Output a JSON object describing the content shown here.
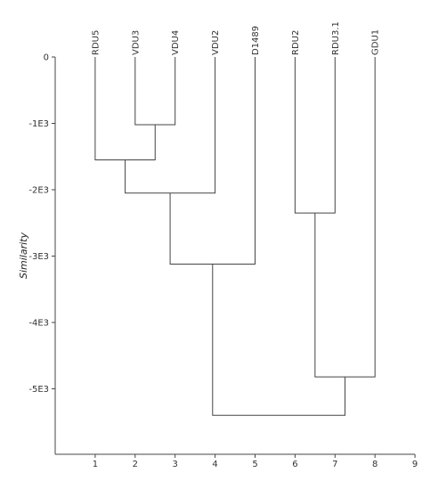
{
  "chart_data": {
    "type": "dendrogram",
    "ylabel": "Similarity",
    "xlabel": "",
    "x_ticks": [
      "1",
      "2",
      "3",
      "4",
      "5",
      "6",
      "7",
      "8",
      "9"
    ],
    "y_ticks": [
      {
        "value": 0,
        "label": "0"
      },
      {
        "value": 1,
        "label": "-1E3"
      },
      {
        "value": 2,
        "label": "-2E3"
      },
      {
        "value": 3,
        "label": "-3E3"
      },
      {
        "value": 4,
        "label": "-4E3"
      },
      {
        "value": 5,
        "label": "-5E3"
      }
    ],
    "xlim": [
      0,
      9
    ],
    "ylim": [
      0,
      6.05
    ],
    "leaves": [
      {
        "label": "RDU5",
        "x": 1
      },
      {
        "label": "VDU3",
        "x": 2
      },
      {
        "label": "VDU4",
        "x": 3
      },
      {
        "label": "VDU2",
        "x": 4
      },
      {
        "label": "D1489",
        "x": 5
      },
      {
        "label": "RDU2",
        "x": 6
      },
      {
        "label": "RDU3.1",
        "x": 7
      },
      {
        "label": "GDU1",
        "x": 8
      }
    ],
    "merges": [
      {
        "left": "VDU3",
        "right": "VDU4",
        "height": 1.02
      },
      {
        "left": "RDU5",
        "right": "VDU3+VDU4",
        "height": 1.55
      },
      {
        "left": "RDU5+VDU3+VDU4",
        "right": "VDU2",
        "height": 2.05
      },
      {
        "left": "RDU5+VDU3+VDU4+VDU2",
        "right": "D1489",
        "height": 3.12
      },
      {
        "left": "RDU2",
        "right": "RDU3.1",
        "height": 2.35
      },
      {
        "left": "RDU2+RDU3.1",
        "right": "GDU1",
        "height": 4.82
      },
      {
        "left": "RDU5+VDU3+VDU4+VDU2+D1489",
        "right": "RDU2+RDU3.1+GDU1",
        "height": 5.4
      }
    ],
    "grid": false,
    "line_color": "#444444"
  }
}
